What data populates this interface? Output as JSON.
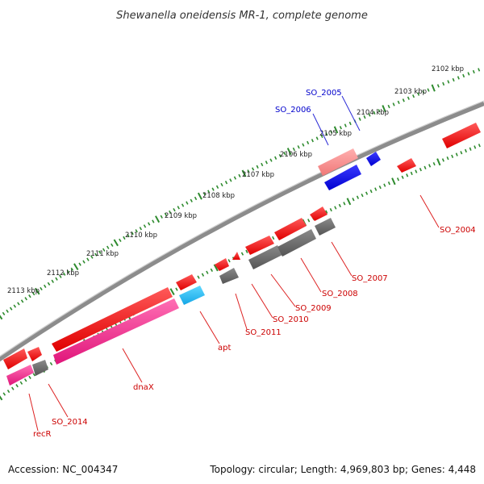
{
  "title": "Shewanella oneidensis MR-1, complete genome",
  "footer": {
    "accession": "Accession: NC_004347",
    "summary": "Topology: circular; Length: 4,969,803 bp; Genes: 4,448"
  },
  "colors": {
    "backbone": "#8c8c8c",
    "ticks": "#2e8b2e",
    "label_blue": "#0000cc",
    "label_red": "#cc0000",
    "leader_blue": "#2b2bd6",
    "leader_red": "#dd2222"
  },
  "scale": {
    "ticks": [
      {
        "label": "2102 kbp"
      },
      {
        "label": "2103 kbp"
      },
      {
        "label": "2104 kbp"
      },
      {
        "label": "2105 kbp"
      },
      {
        "label": "2106 kbp"
      },
      {
        "label": "2107 kbp"
      },
      {
        "label": "2108 kbp"
      },
      {
        "label": "2109 kbp"
      },
      {
        "label": "2110 kbp"
      },
      {
        "label": "2111 kbp"
      },
      {
        "label": "2112 kbp"
      },
      {
        "label": "2113 kbp"
      }
    ]
  },
  "gene_labels": [
    {
      "text": "SO_2005",
      "color": "blue"
    },
    {
      "text": "SO_2006",
      "color": "blue"
    },
    {
      "text": "SO_2004",
      "color": "red"
    },
    {
      "text": "SO_2007",
      "color": "red"
    },
    {
      "text": "SO_2008",
      "color": "red"
    },
    {
      "text": "SO_2009",
      "color": "red"
    },
    {
      "text": "SO_2010",
      "color": "red"
    },
    {
      "text": "SO_2011",
      "color": "red"
    },
    {
      "text": "apt",
      "color": "red"
    },
    {
      "text": "dnaX",
      "color": "red"
    },
    {
      "text": "SO_2014",
      "color": "red"
    },
    {
      "text": "recR",
      "color": "red"
    }
  ]
}
